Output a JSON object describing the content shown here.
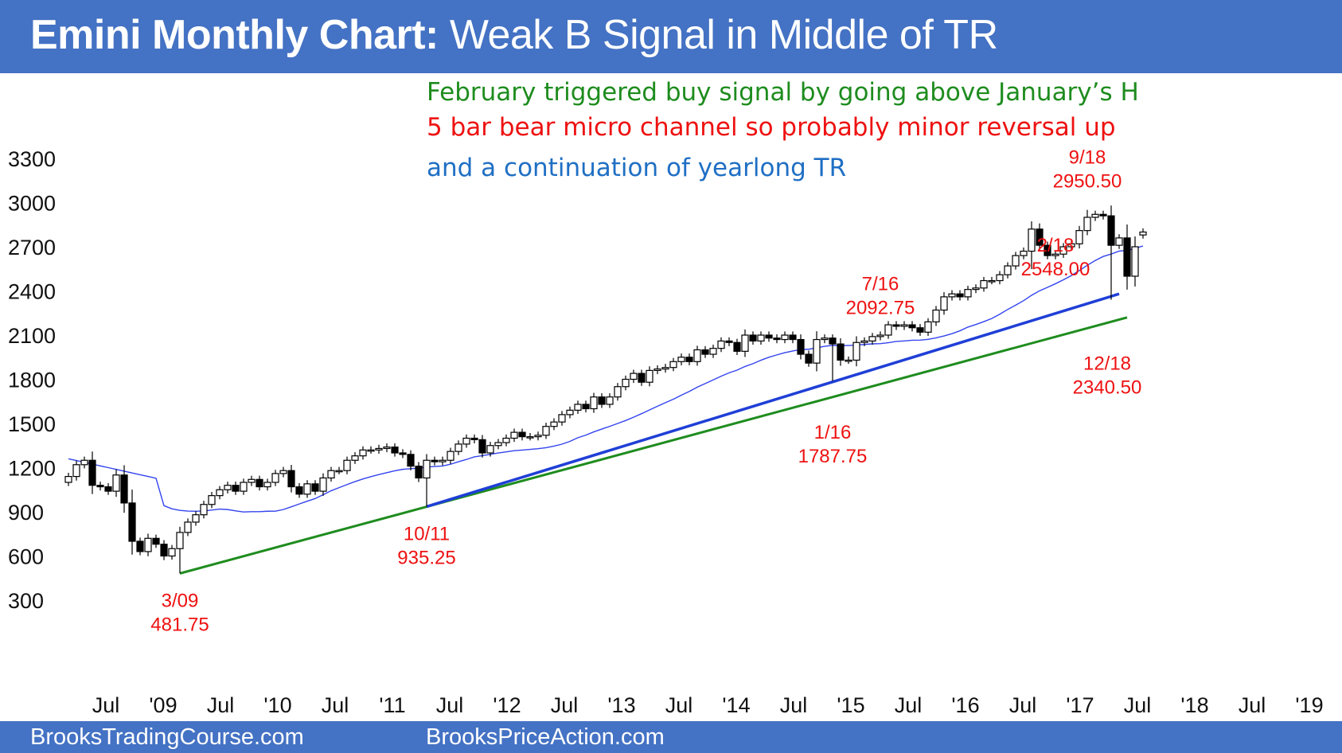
{
  "header": {
    "title_bold": "Emini Monthly Chart:",
    "title_rest": "Weak B Signal in Middle of TR"
  },
  "notes": [
    {
      "text": "February triggered buy signal by going above January’s H",
      "color": "#1e8c1e"
    },
    {
      "text": "5 bar bear micro channel so probably minor reversal up",
      "color": "#ee1111"
    },
    {
      "text": "and a continuation of yearlong TR",
      "color": "#1f6fc4"
    }
  ],
  "footer": {
    "left": "BrooksTradingCourse.com",
    "right": "BrooksPriceAction.com"
  },
  "colors": {
    "banner": "#4472c4",
    "ma": "#3344ee",
    "trend_blue": "#1f3fd6",
    "trend_green": "#1e8c1e",
    "annotation": "#ee1111"
  },
  "chart_data": {
    "type": "candlestick",
    "title": "Emini Monthly Chart",
    "ylim": [
      150,
      3450
    ],
    "y_ticks": [
      300,
      600,
      900,
      1200,
      1500,
      1800,
      2100,
      2400,
      2700,
      3000,
      3300
    ],
    "x_ticks": [
      "Jul",
      "'09",
      "Jul",
      "'10",
      "Jul",
      "'11",
      "Jul",
      "'12",
      "Jul",
      "'13",
      "Jul",
      "'14",
      "Jul",
      "'15",
      "Jul",
      "'16",
      "Jul",
      "'17",
      "Jul",
      "'18",
      "Jul",
      "'19"
    ],
    "start_month": "2008-01",
    "closes": [
      1140,
      1220,
      1250,
      1080,
      1070,
      1040,
      1150,
      960,
      700,
      630,
      720,
      680,
      600,
      650,
      760,
      830,
      880,
      950,
      1010,
      1050,
      1080,
      1040,
      1100,
      1120,
      1070,
      1100,
      1160,
      1180,
      1070,
      1020,
      1090,
      1040,
      1130,
      1180,
      1180,
      1250,
      1280,
      1320,
      1320,
      1330,
      1340,
      1300,
      1290,
      1210,
      1130,
      1250,
      1240,
      1250,
      1310,
      1360,
      1400,
      1390,
      1300,
      1350,
      1370,
      1400,
      1440,
      1410,
      1410,
      1420,
      1480,
      1510,
      1560,
      1590,
      1630,
      1600,
      1680,
      1630,
      1680,
      1750,
      1800,
      1840,
      1780,
      1860,
      1870,
      1880,
      1920,
      1950,
      1920,
      2000,
      1970,
      2010,
      2060,
      2050,
      1990,
      2100,
      2060,
      2100,
      2080,
      2070,
      2100,
      2070,
      1970,
      1910,
      2070,
      2080,
      2040,
      1930,
      1930,
      2050,
      2060,
      2090,
      2100,
      2170,
      2160,
      2170,
      2150,
      2120,
      2190,
      2270,
      2360,
      2380,
      2360,
      2410,
      2420,
      2470,
      2470,
      2510,
      2570,
      2640,
      2670,
      2820,
      2710,
      2640,
      2650,
      2700,
      2720,
      2810,
      2900,
      2920,
      2910,
      2710,
      2760,
      2500,
      2700,
      2800
    ],
    "last_open": 2780,
    "ma_period": 20,
    "trend_lines": [
      {
        "name": "green",
        "from": {
          "date": "2009-03",
          "value": 481.75
        },
        "to": {
          "date": "2019-02",
          "value": 2220
        }
      },
      {
        "name": "blue",
        "from": {
          "date": "2011-10",
          "value": 935.25
        },
        "to": {
          "date": "2019-01",
          "value": 2380
        }
      }
    ],
    "annotations": [
      {
        "date": "2009-03",
        "label": "3/09",
        "value": "481.75"
      },
      {
        "date": "2011-10",
        "label": "10/11",
        "value": "935.25"
      },
      {
        "date": "2016-07",
        "label": "7/16",
        "value": "2092.75"
      },
      {
        "date": "2016-01",
        "label": "1/16",
        "value": "1787.75"
      },
      {
        "date": "2018-09",
        "label": "9/18",
        "value": "2950.50"
      },
      {
        "date": "2018-02",
        "label": "2/18",
        "value": "2548.00"
      },
      {
        "date": "2018-12",
        "label": "12/18",
        "value": "2340.50"
      }
    ]
  }
}
